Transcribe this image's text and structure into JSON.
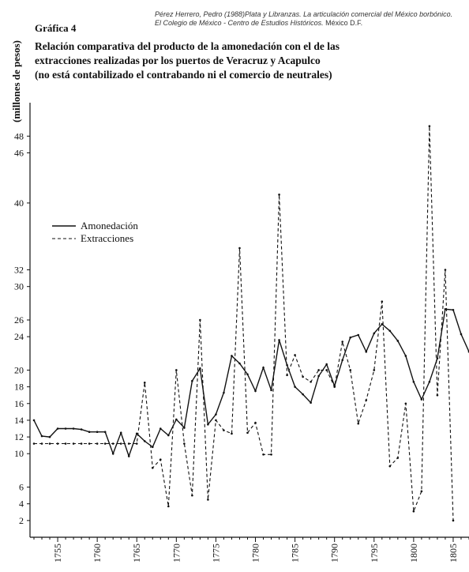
{
  "citation": {
    "line1_italic": "Pérez Herrero, Pedro (1988)Plata y Libranzas. La articulación comercial del México borbónico.",
    "line2_italic": "El Colegio de México - Centro de Estudios Históricos.",
    "line2_plain": " México D.F."
  },
  "figure_label": "Gráfica 4",
  "title_lines": [
    "Relación comparativa del producto de la amonedación con el de las",
    "extracciones realizadas por los puertos de Veracruz y Acapulco",
    "(no está contabilizado el contrabando ni el comercio de neutrales)"
  ],
  "chart_data": {
    "type": "line",
    "ylabel": "(millones de pesos)",
    "xlabel": "",
    "xlim": [
      1751.5,
      1807
    ],
    "ylim": [
      0,
      52
    ],
    "x_ticks": [
      1755,
      1760,
      1765,
      1770,
      1775,
      1780,
      1785,
      1790,
      1795,
      1800,
      1805
    ],
    "y_ticks": [
      2,
      4,
      6,
      10,
      12,
      14,
      16,
      18,
      20,
      24,
      26,
      30,
      32,
      40,
      46,
      48
    ],
    "legend": {
      "position": "upper-left",
      "entries": [
        {
          "label": "Amonedación",
          "style": "solid"
        },
        {
          "label": "Extracciones",
          "style": "dashed"
        }
      ]
    },
    "series": [
      {
        "name": "Amonedación",
        "style": "solid",
        "x": [
          1752,
          1753,
          1754,
          1755,
          1756,
          1757,
          1758,
          1759,
          1760,
          1761,
          1762,
          1763,
          1764,
          1765,
          1766,
          1767,
          1768,
          1769,
          1770,
          1771,
          1772,
          1773,
          1774,
          1775,
          1776,
          1777,
          1778,
          1779,
          1780,
          1781,
          1782,
          1783,
          1784,
          1785,
          1786,
          1787,
          1788,
          1789,
          1790,
          1791,
          1792,
          1793,
          1794,
          1795,
          1796,
          1797,
          1798,
          1799,
          1800,
          1801,
          1802,
          1803,
          1804,
          1805,
          1806,
          1807
        ],
        "values": [
          14.0,
          12.1,
          12.0,
          13.0,
          13.0,
          13.0,
          12.9,
          12.6,
          12.6,
          12.6,
          10.0,
          12.5,
          9.7,
          12.4,
          11.5,
          10.8,
          13.0,
          12.2,
          14.1,
          13.1,
          18.7,
          20.2,
          13.5,
          14.7,
          17.3,
          21.7,
          20.8,
          19.5,
          17.5,
          20.3,
          17.6,
          23.6,
          20.6,
          18.0,
          17.1,
          16.1,
          19.3,
          20.7,
          18.1,
          21.2,
          23.9,
          24.2,
          22.2,
          24.4,
          25.5,
          24.7,
          23.5,
          21.7,
          18.6,
          16.5,
          18.6,
          21.4,
          27.3,
          27.2,
          24.3,
          22.2
        ]
      },
      {
        "name": "Extracciones",
        "style": "dashed",
        "x": [
          1752,
          1753,
          1754,
          1755,
          1756,
          1757,
          1758,
          1759,
          1760,
          1761,
          1762,
          1763,
          1764,
          1765,
          1766,
          1767,
          1768,
          1769,
          1770,
          1771,
          1772,
          1773,
          1774,
          1775,
          1776,
          1777,
          1778,
          1779,
          1780,
          1781,
          1782,
          1783,
          1784,
          1785,
          1786,
          1787,
          1788,
          1789,
          1790,
          1791,
          1792,
          1793,
          1794,
          1795,
          1796,
          1797,
          1798,
          1799,
          1800,
          1801,
          1802,
          1803,
          1804,
          1805
        ],
        "values": [
          11.2,
          11.2,
          11.2,
          11.2,
          11.2,
          11.2,
          11.2,
          11.2,
          11.2,
          11.2,
          11.2,
          11.2,
          11.2,
          11.2,
          18.5,
          8.3,
          9.3,
          3.7,
          20.0,
          11.2,
          5.0,
          26.0,
          4.5,
          14.0,
          12.8,
          12.4,
          34.6,
          12.5,
          13.7,
          9.9,
          9.9,
          41.0,
          19.4,
          21.8,
          19.2,
          18.6,
          20.0,
          20.0,
          18.0,
          23.4,
          20.0,
          13.6,
          16.4,
          20.0,
          28.2,
          8.5,
          9.5,
          16.0,
          3.1,
          5.5,
          49.2,
          17.0,
          32.0,
          2.0
        ]
      }
    ]
  }
}
